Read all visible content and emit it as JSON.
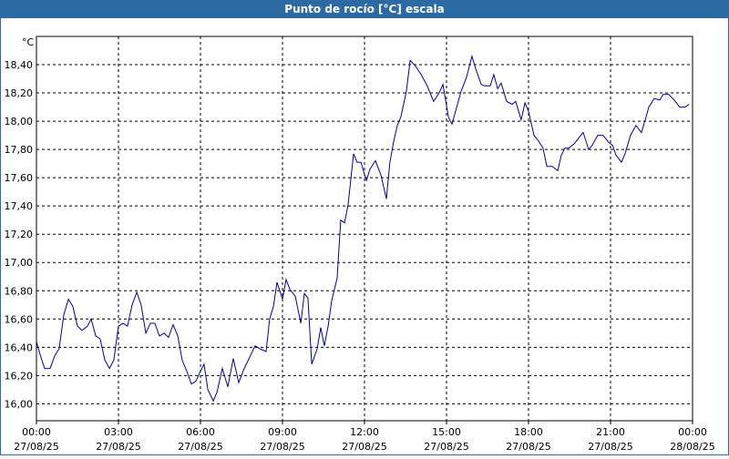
{
  "chart_data": {
    "type": "line",
    "title": "Punto de rocío [°C] escala",
    "y_unit": "°C",
    "color": "#0000a8",
    "grid": true,
    "xlim": [
      0,
      24
    ],
    "xticks": [
      {
        "value": 0,
        "label": "00:00"
      },
      {
        "value": 3,
        "label": "03:00"
      },
      {
        "value": 6,
        "label": "06:00"
      },
      {
        "value": 9,
        "label": "09:00"
      },
      {
        "value": 12,
        "label": "12:00"
      },
      {
        "value": 15,
        "label": "15:00"
      },
      {
        "value": 18,
        "label": "18:00"
      },
      {
        "value": 21,
        "label": "21:00"
      },
      {
        "value": 24,
        "label": "00:00"
      }
    ],
    "xtick_dates": [
      "27/08/25",
      "27/08/25",
      "27/08/25",
      "27/08/25",
      "27/08/25",
      "27/08/25",
      "27/08/25",
      "27/08/25",
      "28/08/25"
    ],
    "ylim": [
      15.88,
      18.6
    ],
    "yticks": [
      {
        "value": 16,
        "label": "16,00"
      },
      {
        "value": 16.2,
        "label": "16,20"
      },
      {
        "value": 16.4,
        "label": "16,40"
      },
      {
        "value": 16.6,
        "label": "16,60"
      },
      {
        "value": 16.8,
        "label": "16,80"
      },
      {
        "value": 17,
        "label": "17,00"
      },
      {
        "value": 17.2,
        "label": "17,20"
      },
      {
        "value": 17.4,
        "label": "17,40"
      },
      {
        "value": 17.6,
        "label": "17,60"
      },
      {
        "value": 17.8,
        "label": "17,80"
      },
      {
        "value": 18,
        "label": "18,00"
      },
      {
        "value": 18.2,
        "label": "18,20"
      },
      {
        "value": 18.4,
        "label": "18,40"
      }
    ],
    "x": [
      0,
      0.13,
      0.3,
      0.5,
      0.67,
      0.83,
      1,
      1.17,
      1.33,
      1.5,
      1.67,
      1.87,
      2,
      2.17,
      2.33,
      2.5,
      2.67,
      2.83,
      3,
      3.17,
      3.33,
      3.5,
      3.67,
      3.83,
      4,
      4.17,
      4.33,
      4.5,
      4.67,
      4.83,
      5,
      5.17,
      5.33,
      5.5,
      5.67,
      5.83,
      6,
      6.13,
      6.27,
      6.47,
      6.6,
      6.8,
      7,
      7.2,
      7.4,
      7.6,
      7.8,
      8,
      8.17,
      8.4,
      8.53,
      8.67,
      8.8,
      9,
      9.13,
      9.27,
      9.47,
      9.67,
      9.8,
      9.93,
      10.07,
      10.27,
      10.4,
      10.53,
      10.67,
      10.8,
      11,
      11.13,
      11.27,
      11.4,
      11.6,
      11.73,
      11.87,
      12.07,
      12.2,
      12.4,
      12.6,
      12.8,
      12.93,
      13.07,
      13.2,
      13.33,
      13.53,
      13.67,
      13.87,
      14.07,
      14.27,
      14.53,
      14.73,
      14.87,
      15.07,
      15.2,
      15.33,
      15.53,
      15.73,
      15.93,
      16.07,
      16.27,
      16.4,
      16.6,
      16.73,
      16.87,
      17,
      17.2,
      17.4,
      17.53,
      17.73,
      17.87,
      18,
      18.2,
      18.33,
      18.53,
      18.67,
      18.87,
      19.07,
      19.2,
      19.33,
      19.47,
      19.67,
      19.87,
      20,
      20.2,
      20.33,
      20.53,
      20.73,
      20.93,
      21.07,
      21.2,
      21.4,
      21.53,
      21.73,
      21.93,
      22.13,
      22.27,
      22.4,
      22.6,
      22.8,
      22.93,
      23.13,
      23.33,
      23.53,
      23.73,
      23.87
    ],
    "values": [
      16.44,
      16.35,
      16.25,
      16.25,
      16.34,
      16.39,
      16.63,
      16.74,
      16.69,
      16.55,
      16.52,
      16.55,
      16.6,
      16.48,
      16.46,
      16.31,
      16.25,
      16.31,
      16.55,
      16.57,
      16.55,
      16.7,
      16.79,
      16.7,
      16.5,
      16.57,
      16.57,
      16.48,
      16.5,
      16.47,
      16.56,
      16.48,
      16.31,
      16.23,
      16.14,
      16.16,
      16.23,
      16.28,
      16.1,
      16.02,
      16.08,
      16.25,
      16.12,
      16.32,
      16.15,
      16.25,
      16.33,
      16.41,
      16.39,
      16.37,
      16.6,
      16.69,
      16.86,
      16.74,
      16.88,
      16.81,
      16.76,
      16.57,
      16.78,
      16.75,
      16.28,
      16.39,
      16.54,
      16.41,
      16.55,
      16.73,
      16.89,
      17.3,
      17.28,
      17.41,
      17.77,
      17.71,
      17.71,
      17.58,
      17.66,
      17.72,
      17.62,
      17.45,
      17.71,
      17.86,
      17.97,
      18.03,
      18.21,
      18.43,
      18.39,
      18.33,
      18.26,
      18.14,
      18.2,
      18.26,
      18.03,
      17.98,
      18.07,
      18.21,
      18.31,
      18.46,
      18.37,
      18.26,
      18.25,
      18.25,
      18.33,
      18.23,
      18.27,
      18.14,
      18.12,
      18.14,
      18.01,
      18.13,
      18.07,
      17.9,
      17.87,
      17.81,
      17.68,
      17.68,
      17.65,
      17.76,
      17.81,
      17.81,
      17.84,
      17.89,
      17.92,
      17.8,
      17.83,
      17.9,
      17.9,
      17.85,
      17.83,
      17.76,
      17.71,
      17.77,
      17.9,
      17.97,
      17.92,
      18.01,
      18.1,
      18.16,
      18.15,
      18.19,
      18.19,
      18.15,
      18.1,
      18.1,
      18.12
    ]
  }
}
